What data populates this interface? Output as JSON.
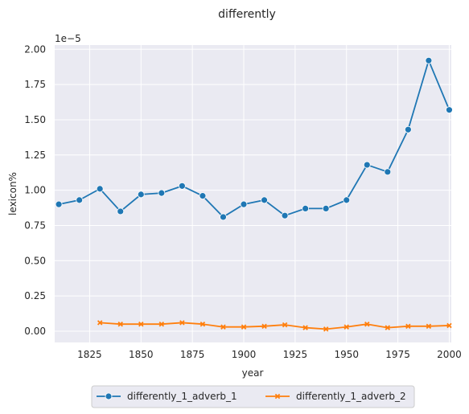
{
  "chart_data": {
    "type": "line",
    "title": "differently",
    "xlabel": "year",
    "ylabel": "lexicon%",
    "y_offset_label": "1e−5",
    "xlim": [
      1808,
      2001
    ],
    "ylim": [
      -0.08,
      2.03
    ],
    "x_ticks": [
      1825,
      1850,
      1875,
      1900,
      1925,
      1950,
      1975,
      2000
    ],
    "y_ticks": [
      0.0,
      0.25,
      0.5,
      0.75,
      1.0,
      1.25,
      1.5,
      1.75,
      2.0
    ],
    "y_tick_labels": [
      "0.00",
      "0.25",
      "0.50",
      "0.75",
      "1.00",
      "1.25",
      "1.50",
      "1.75",
      "2.00"
    ],
    "grid": true,
    "legend_position": "bottom-center",
    "series": [
      {
        "name": "differently_1_adverb_1",
        "color": "#1f77b4",
        "marker": "circle",
        "x": [
          1810,
          1820,
          1830,
          1840,
          1850,
          1860,
          1870,
          1880,
          1890,
          1900,
          1910,
          1920,
          1930,
          1940,
          1950,
          1960,
          1970,
          1980,
          1990,
          2000
        ],
        "y": [
          0.9,
          0.93,
          1.01,
          0.85,
          0.97,
          0.98,
          1.03,
          0.96,
          0.81,
          0.9,
          0.93,
          0.82,
          0.87,
          0.87,
          0.93,
          1.18,
          1.13,
          1.43,
          1.92,
          1.57
        ]
      },
      {
        "name": "differently_1_adverb_2",
        "color": "#ff7f0e",
        "marker": "x",
        "x": [
          1830,
          1840,
          1850,
          1860,
          1870,
          1880,
          1890,
          1900,
          1910,
          1920,
          1930,
          1940,
          1950,
          1960,
          1970,
          1980,
          1990,
          2000
        ],
        "y": [
          0.06,
          0.05,
          0.05,
          0.05,
          0.06,
          0.05,
          0.03,
          0.03,
          0.035,
          0.045,
          0.025,
          0.015,
          0.03,
          0.05,
          0.025,
          0.035,
          0.035,
          0.04
        ]
      }
    ]
  }
}
